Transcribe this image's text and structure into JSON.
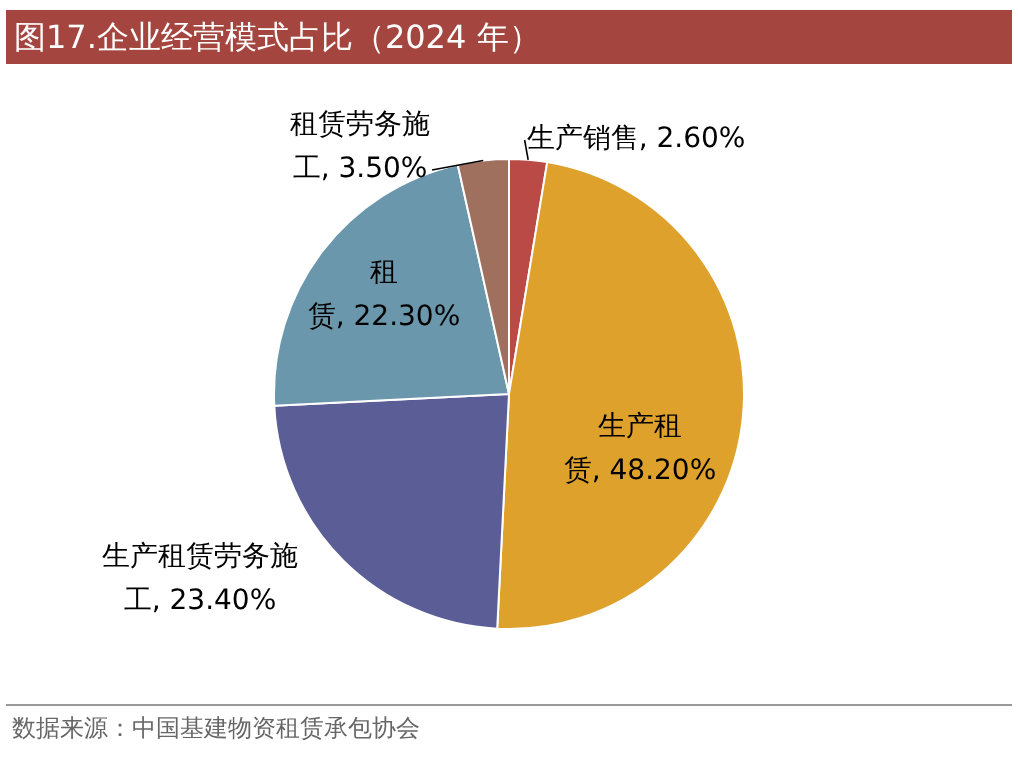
{
  "chart_data": {
    "type": "pie",
    "title": "图17.企业经营模式占比（2024 年）",
    "categories": [
      "生产销售",
      "生产租赁",
      "生产租赁劳务施工",
      "租赁",
      "租赁劳务施工"
    ],
    "values": [
      2.6,
      48.2,
      23.4,
      22.3,
      3.5
    ],
    "value_labels": [
      "2.60%",
      "48.20%",
      "23.40%",
      "22.30%",
      "3.50%"
    ],
    "colors": [
      "#b94a45",
      "#dea12c",
      "#5b5d96",
      "#6a97ab",
      "#a0705f"
    ],
    "legend": false,
    "annotations": [
      "数据来源：中国基建物资租赁承包协会"
    ]
  }
}
